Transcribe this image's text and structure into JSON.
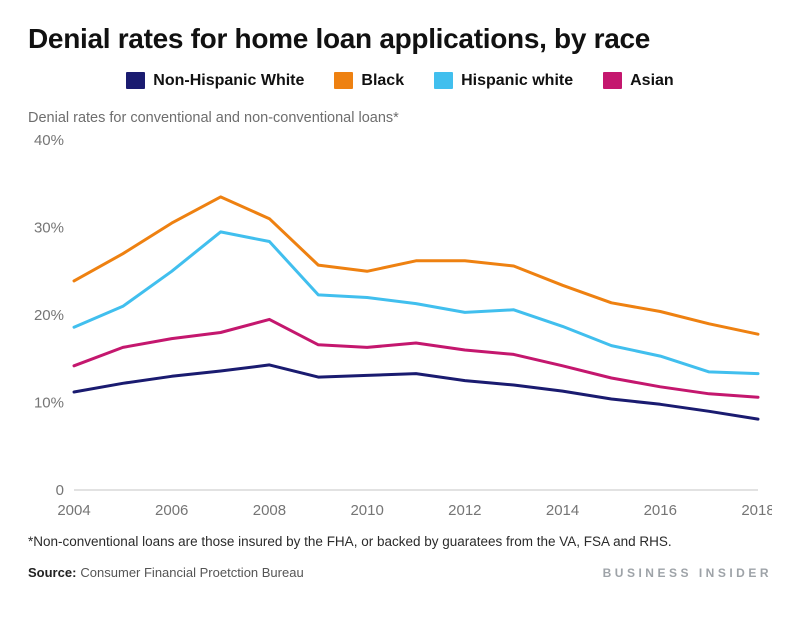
{
  "chart_data": {
    "type": "line",
    "title": "Denial rates for home loan applications, by race",
    "subtitle": "Denial rates for conventional and non-conventional loans*",
    "x": [
      2004,
      2005,
      2006,
      2007,
      2008,
      2009,
      2010,
      2011,
      2012,
      2013,
      2014,
      2015,
      2016,
      2017,
      2018
    ],
    "x_ticks": [
      2004,
      2006,
      2008,
      2010,
      2012,
      2014,
      2016,
      2018
    ],
    "y_ticks": [
      0,
      10,
      20,
      30,
      40
    ],
    "y_tick_labels": [
      "0",
      "10%",
      "20%",
      "30%",
      "40%"
    ],
    "ylim": [
      0,
      40
    ],
    "grid": false,
    "legend_position": "top",
    "baseline_color": "#d9d9d9",
    "series": [
      {
        "name": "Non-Hispanic White",
        "color": "#1a1b70",
        "values": [
          11.2,
          12.2,
          13.0,
          13.6,
          14.3,
          12.9,
          13.1,
          13.3,
          12.5,
          12.0,
          11.3,
          10.4,
          9.8,
          9.0,
          8.1
        ]
      },
      {
        "name": "Black",
        "color": "#ee8111",
        "values": [
          23.9,
          27.0,
          30.5,
          33.5,
          31.0,
          25.7,
          25.0,
          26.2,
          26.2,
          25.6,
          23.4,
          21.4,
          20.4,
          19.0,
          17.8
        ]
      },
      {
        "name": "Hispanic white",
        "color": "#41bfee",
        "values": [
          18.6,
          21.0,
          25.0,
          29.5,
          28.4,
          22.3,
          22.0,
          21.3,
          20.3,
          20.6,
          18.7,
          16.5,
          15.3,
          13.5,
          13.3
        ]
      },
      {
        "name": "Asian",
        "color": "#c4176e",
        "values": [
          14.2,
          16.3,
          17.3,
          18.0,
          19.5,
          16.6,
          16.3,
          16.8,
          16.0,
          15.5,
          14.2,
          12.8,
          11.8,
          11.0,
          10.6
        ]
      }
    ]
  },
  "footnote": "*Non-conventional loans are those insured by the FHA, or backed by guaratees from the VA, FSA and RHS.",
  "source": {
    "label": "Source:",
    "text": "Consumer Financial Proetction Bureau"
  },
  "branding": "BUSINESS INSIDER"
}
